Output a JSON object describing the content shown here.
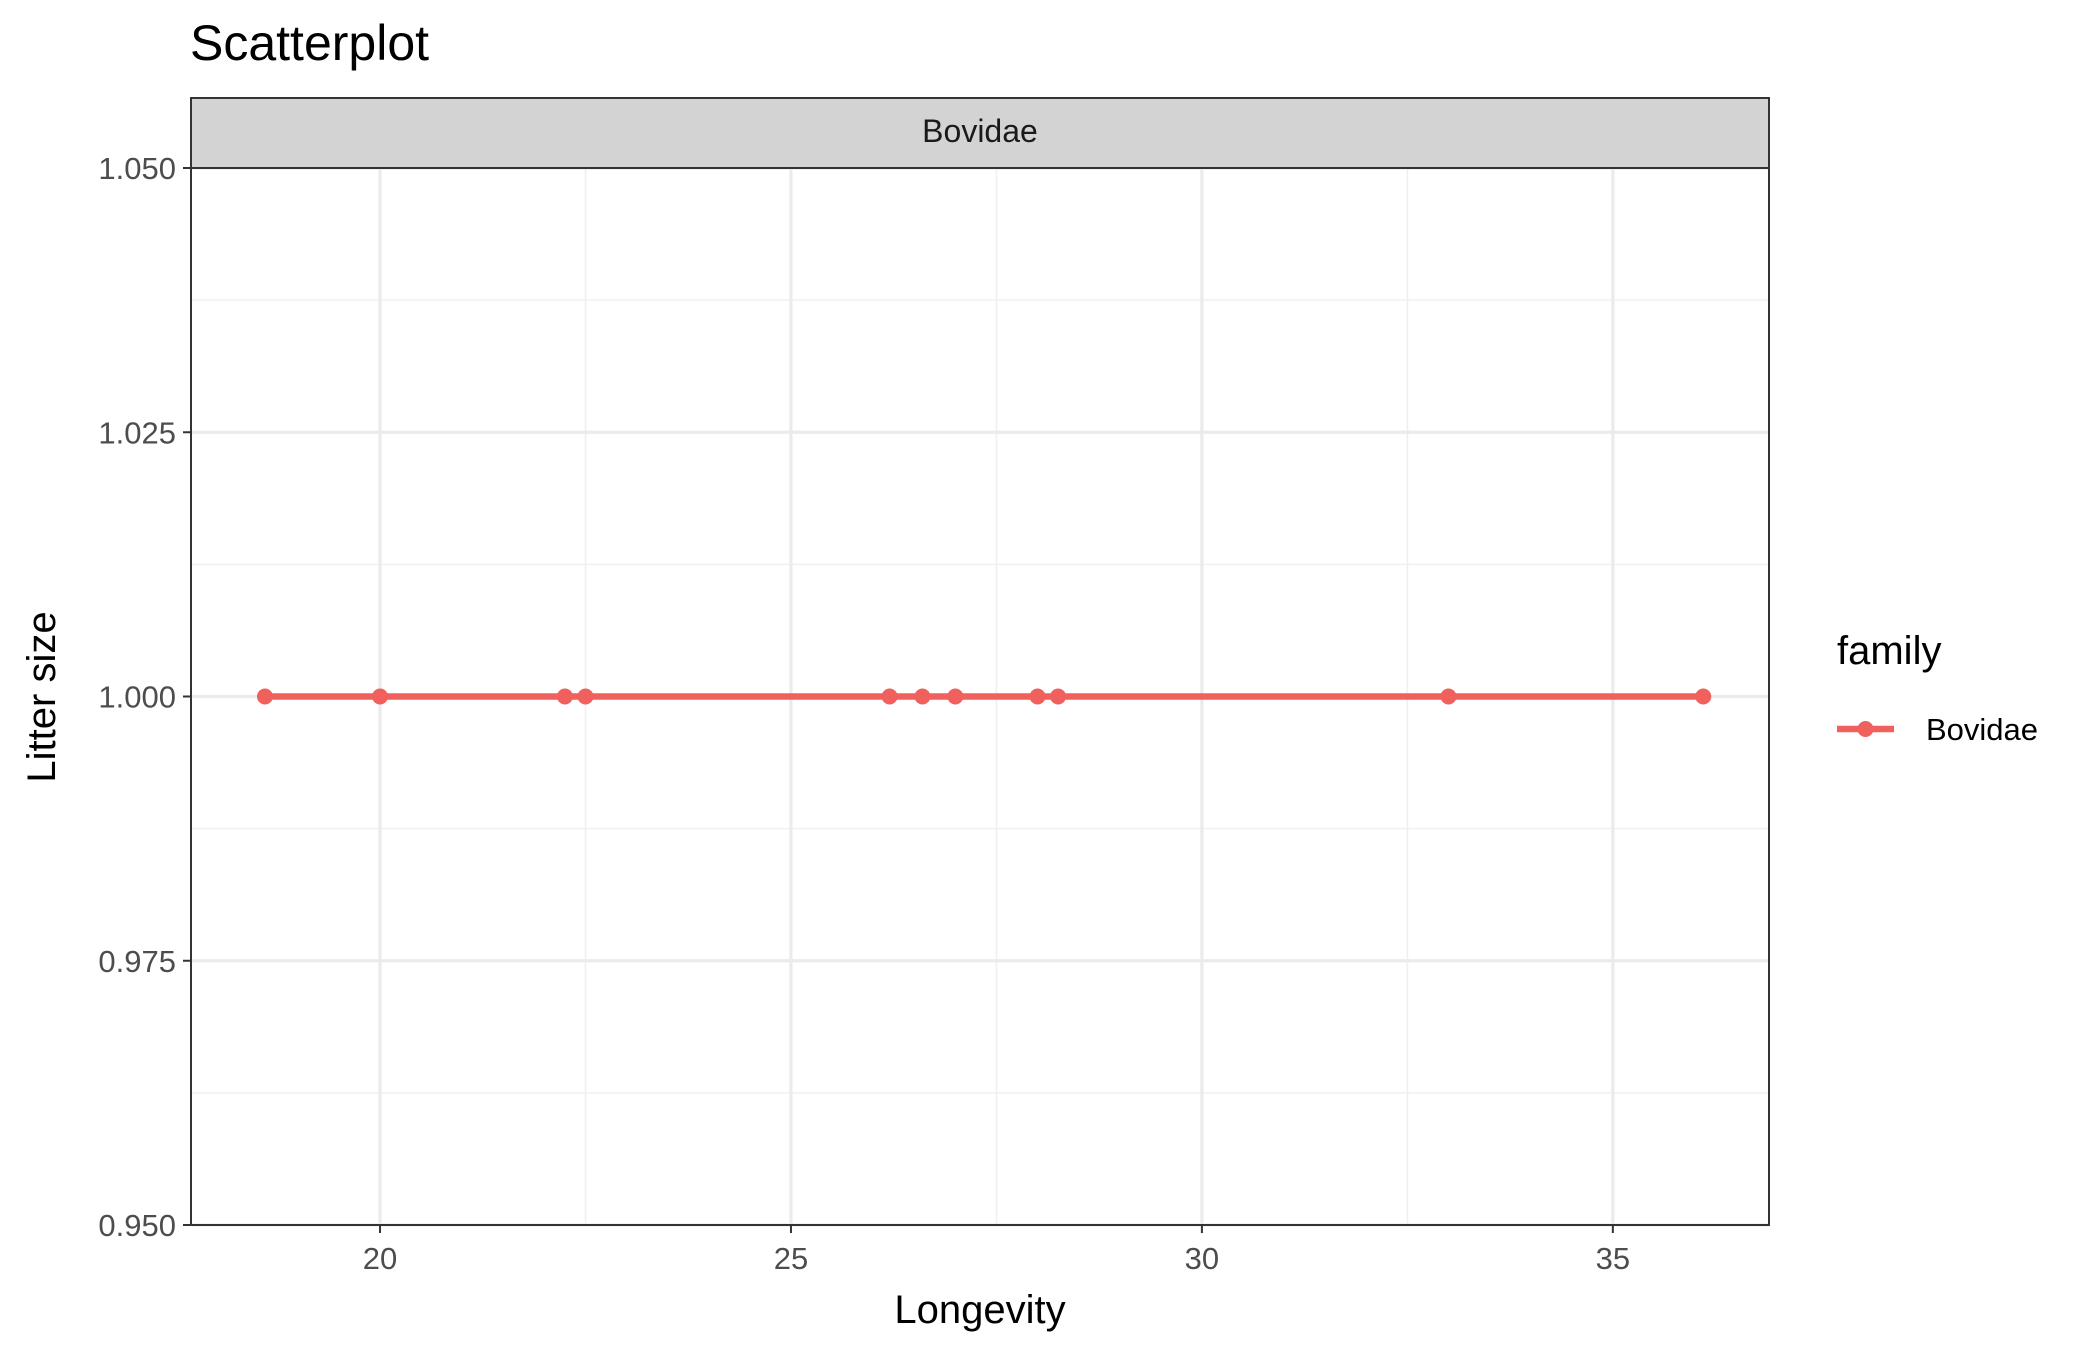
{
  "chart_data": {
    "type": "line",
    "title": "Scatterplot",
    "xlabel": "Longevity",
    "ylabel": "Litter size",
    "facet_label": "Bovidae",
    "xlim": [
      17.7,
      36.9
    ],
    "ylim": [
      0.95,
      1.05
    ],
    "x_ticks": [
      20,
      25,
      30,
      35
    ],
    "x_tick_labels": [
      "20",
      "25",
      "30",
      "35"
    ],
    "y_ticks": [
      0.95,
      0.975,
      1.0,
      1.025,
      1.05
    ],
    "y_tick_labels": [
      "0.950",
      "0.975",
      "1.000",
      "1.025",
      "1.050"
    ],
    "grid": true,
    "legend": {
      "title": "family",
      "placement": "right",
      "entries": [
        "Bovidae"
      ]
    },
    "series": [
      {
        "name": "Bovidae",
        "color": "#F0605D",
        "x": [
          18.6,
          20.0,
          22.25,
          22.5,
          26.2,
          26.6,
          27.0,
          28.0,
          28.25,
          33.0,
          36.1
        ],
        "y": [
          1.0,
          1.0,
          1.0,
          1.0,
          1.0,
          1.0,
          1.0,
          1.0,
          1.0,
          1.0,
          1.0
        ]
      }
    ]
  }
}
